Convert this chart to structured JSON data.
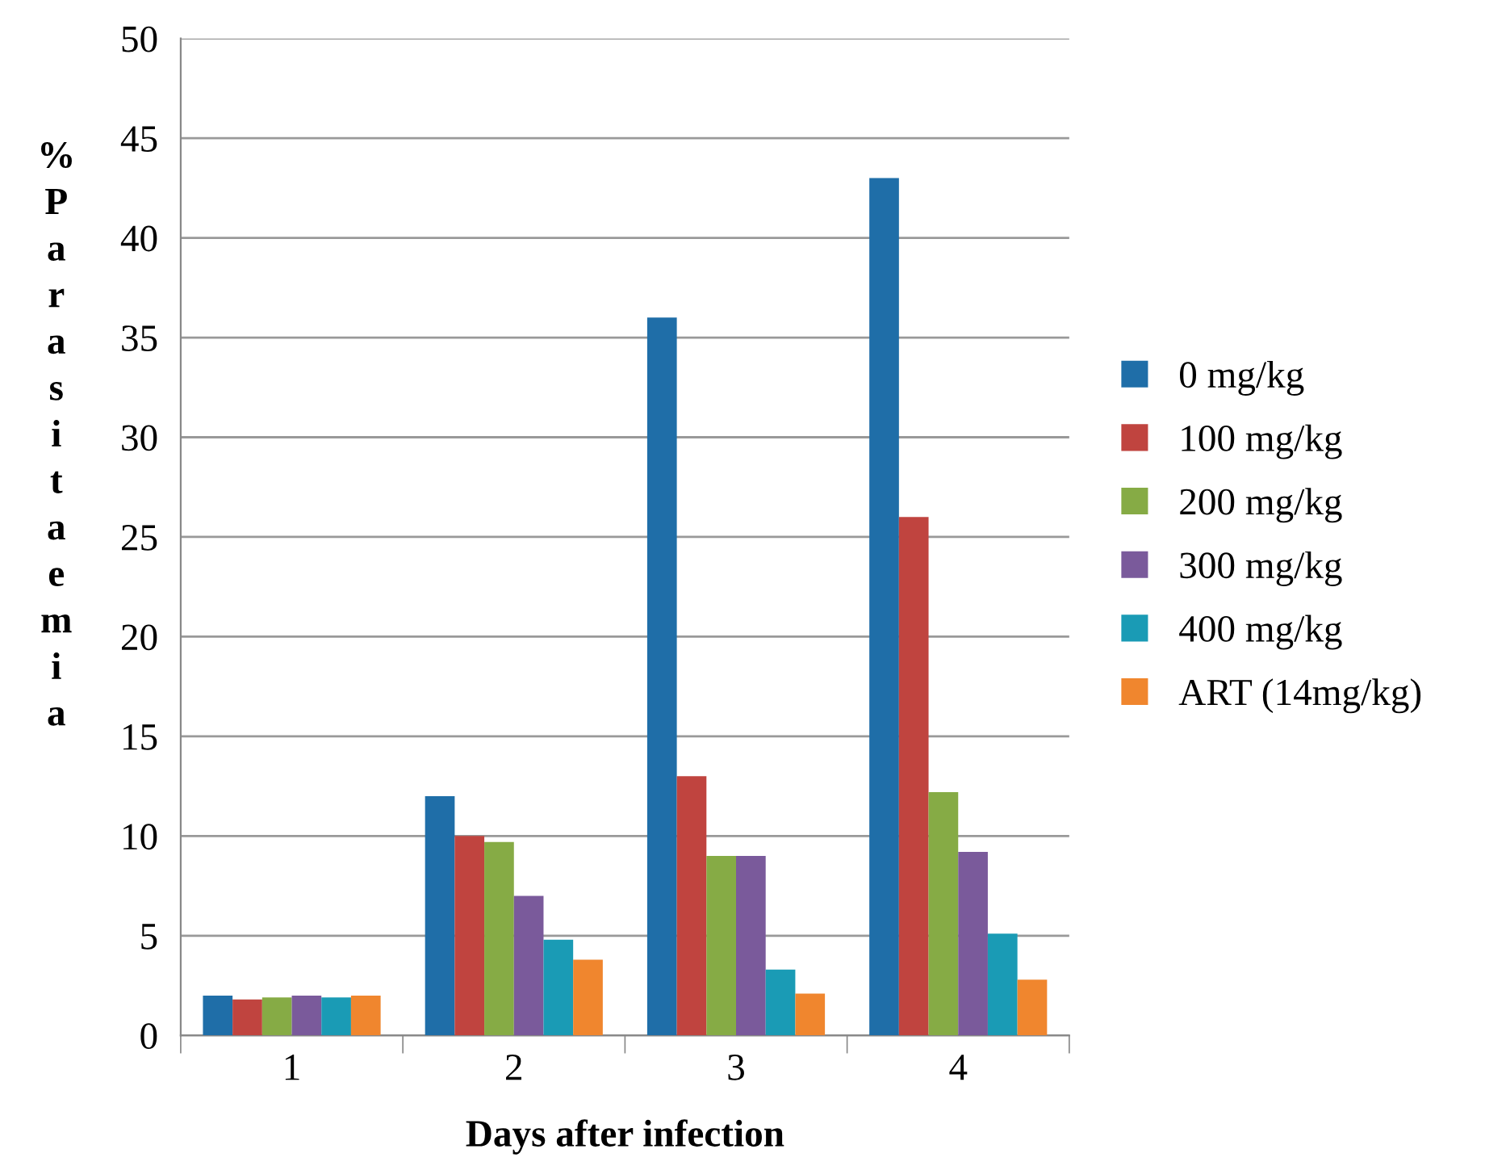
{
  "chart_data": {
    "type": "bar",
    "xlabel": "Days after infection",
    "ylabel": "% Parasitaemia",
    "categories": [
      "1",
      "2",
      "3",
      "4"
    ],
    "series": [
      {
        "name": "0 mg/kg",
        "color": "#1f6ea8",
        "values": [
          2,
          12,
          36,
          43
        ]
      },
      {
        "name": "100 mg/kg",
        "color": "#c0443f",
        "values": [
          1.8,
          10,
          13,
          26
        ]
      },
      {
        "name": "200 mg/kg",
        "color": "#86ab45",
        "values": [
          1.9,
          9.7,
          9,
          12.2
        ]
      },
      {
        "name": "300 mg/kg",
        "color": "#7a5a9b",
        "values": [
          2,
          7,
          9,
          9.2
        ]
      },
      {
        "name": "400 mg/kg",
        "color": "#1a9bb5",
        "values": [
          1.9,
          4.8,
          3.3,
          5.1
        ]
      },
      {
        "name": "ART (14mg/kg)",
        "color": "#f0862e",
        "values": [
          2,
          3.8,
          2.1,
          2.8
        ]
      }
    ],
    "ylim": [
      0,
      50
    ],
    "yticks": [
      0,
      5,
      10,
      15,
      20,
      25,
      30,
      35,
      40,
      45,
      50
    ],
    "grid": "y",
    "legend": "right"
  }
}
